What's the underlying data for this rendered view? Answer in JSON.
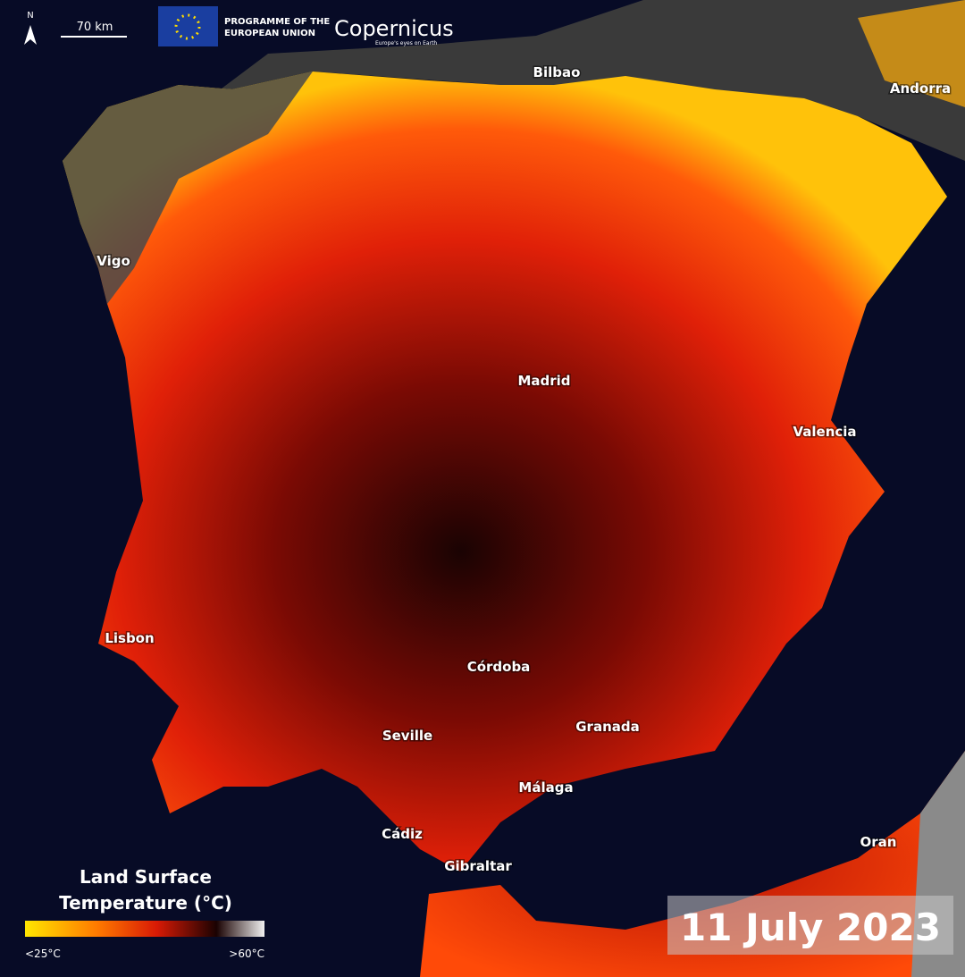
{
  "header": {
    "north": "N",
    "scale": "70 km",
    "programme_lines": [
      "PROGRAMME OF THE",
      "EUROPEAN UNION"
    ],
    "brand": "Copernicus",
    "tagline": "Europe's eyes on Earth"
  },
  "cities": [
    {
      "name": "Bilbao"
    },
    {
      "name": "Andorra"
    },
    {
      "name": "Vigo"
    },
    {
      "name": "Madrid"
    },
    {
      "name": "Valencia"
    },
    {
      "name": "Lisbon"
    },
    {
      "name": "Córdoba"
    },
    {
      "name": "Seville"
    },
    {
      "name": "Granada"
    },
    {
      "name": "Málaga"
    },
    {
      "name": "Cádiz"
    },
    {
      "name": "Gibraltar"
    },
    {
      "name": "Oran"
    }
  ],
  "legend": {
    "title_lines": [
      "Land Surface",
      "Temperature (°C)"
    ],
    "min_label": "<25°C",
    "max_label": ">60°C"
  },
  "date": "11 July 2023"
}
